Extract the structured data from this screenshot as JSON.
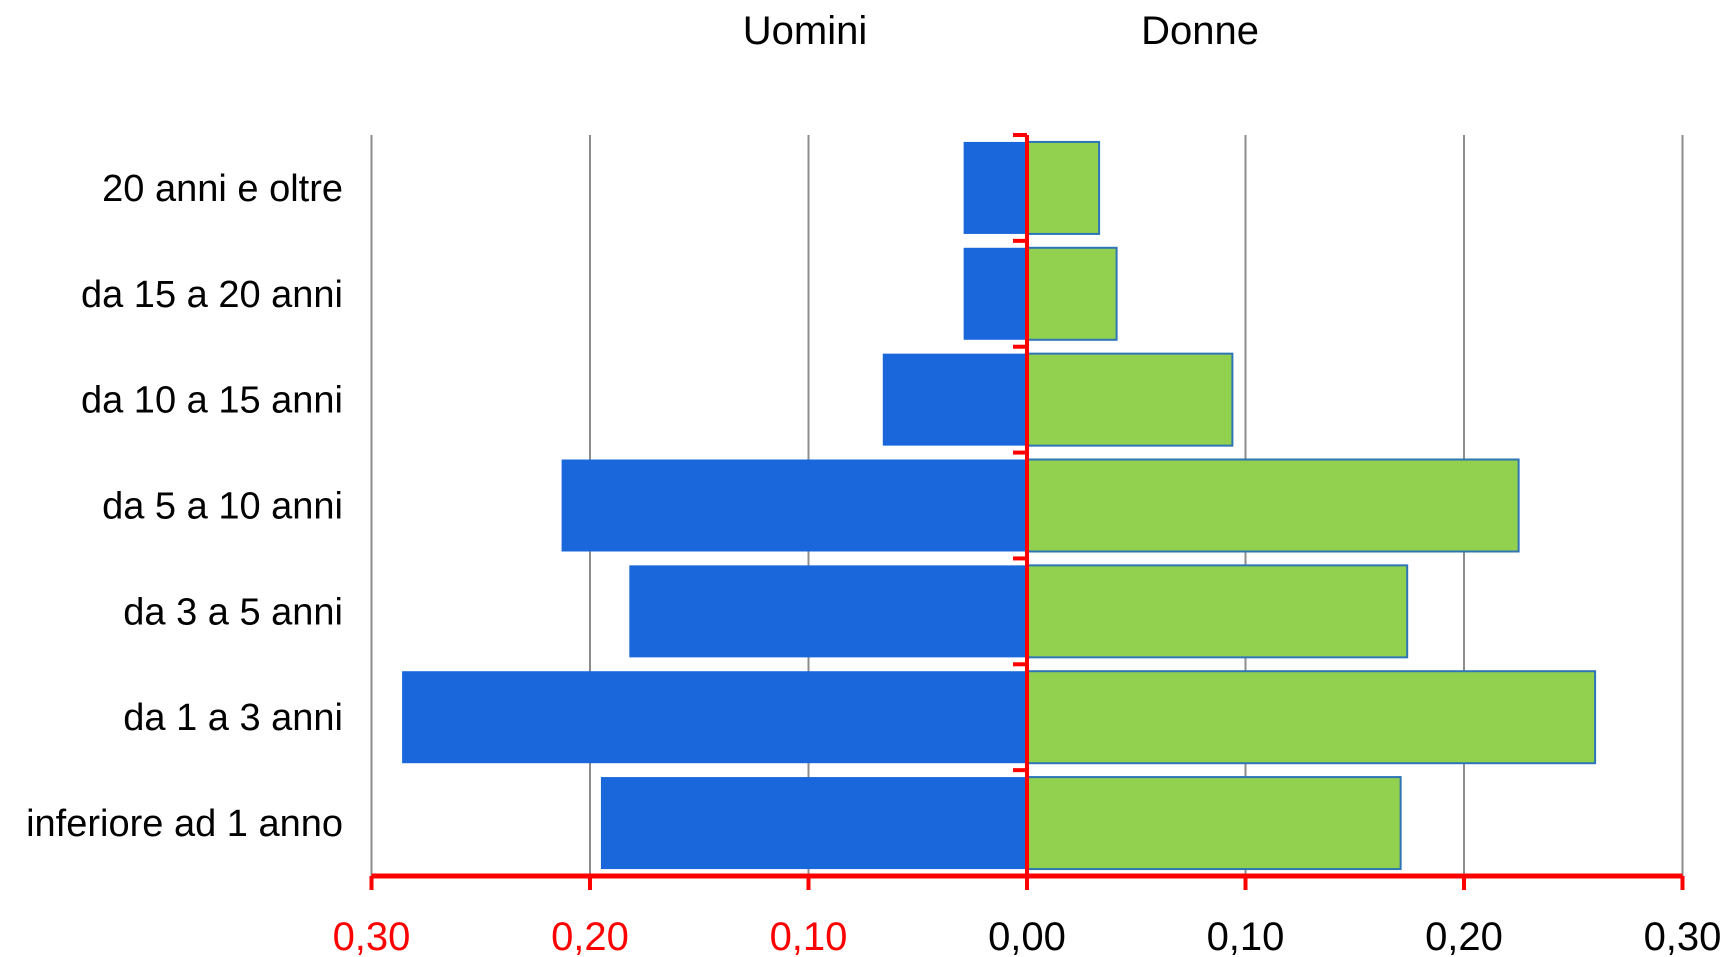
{
  "chart_data": {
    "type": "bar",
    "orientation": "horizontal",
    "layout": "population-pyramid",
    "categories": [
      "20 anni e oltre",
      "da 15 a 20 anni",
      "da 10 a 15 anni",
      "da 5 a 10 anni",
      "da 3 a 5 anni",
      "da 1 a 3 anni",
      "inferiore ad 1 anno"
    ],
    "series": [
      {
        "name": "Uomini",
        "color": "#1967DB",
        "values": [
          0.029,
          0.029,
          0.066,
          0.213,
          0.182,
          0.286,
          0.195
        ]
      },
      {
        "name": "Donne",
        "color": "#92D050",
        "values": [
          0.033,
          0.041,
          0.094,
          0.225,
          0.174,
          0.26,
          0.171
        ]
      }
    ],
    "xlim": [
      -0.3,
      0.3
    ],
    "x_tick_labels": [
      "0,30",
      "0,20",
      "0,10",
      "0,00",
      "0,10",
      "0,20",
      "0,30"
    ],
    "x_tick_colors": [
      "#FF0000",
      "#FF0000",
      "#FF0000",
      "#000000",
      "#000000",
      "#000000",
      "#000000"
    ],
    "axis_color": "#FF0000",
    "grid": true,
    "legend": "top"
  }
}
